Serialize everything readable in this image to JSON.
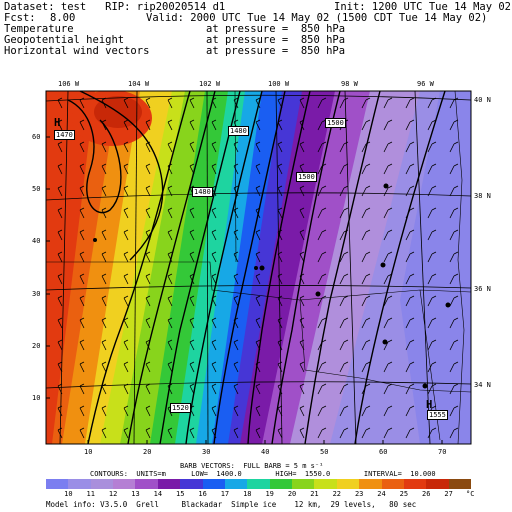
{
  "header": {
    "dataset_line": "Dataset: test   RIP: rip20020514 d1",
    "init_line": "Init: 1200 UTC Tue 14 May 02",
    "fcst_label": "Fcst:",
    "fcst_value": "8.00",
    "valid_line": "Valid: 2000 UTC Tue 14 May 02 (1500 CDT Tue 14 May 02)",
    "fields": [
      {
        "name": "Temperature",
        "pressure_text": "at pressure =  850 hPa"
      },
      {
        "name": "Geopotential height",
        "pressure_text": "at pressure =  850 hPa"
      },
      {
        "name": "Horizontal wind vectors",
        "pressure_text": "at pressure =  850 hPa"
      }
    ]
  },
  "top_axis_labels": [
    "106 W",
    "104 W",
    "102 W",
    "100 W",
    "98 W",
    "96 W"
  ],
  "right_axis_labels": [
    "40 N",
    "38 N",
    "36 N",
    "34 N"
  ],
  "left_axis_ticks": [
    "60",
    "50",
    "40",
    "30",
    "20",
    "10"
  ],
  "bottom_axis_ticks": [
    "10",
    "20",
    "30",
    "40",
    "50",
    "60",
    "70",
    "80"
  ],
  "contour_labels": [
    "1470",
    "1480",
    "1480",
    "1500",
    "1500",
    "1520",
    "1555"
  ],
  "pressure_centers": [
    {
      "letter": "H",
      "value": "1470"
    },
    {
      "letter": "H",
      "value": "1555"
    }
  ],
  "barb_info": "BARB VECTORS:  FULL BARB = 5 m s⁻¹",
  "contour_info": "CONTOURS:  UNITS=m      LOW=  1400.0        HIGH=  1550.0        INTERVAL=  10.000",
  "colorbar": {
    "labels": [
      "10",
      "11",
      "12",
      "13",
      "14",
      "15",
      "16",
      "17",
      "18",
      "19",
      "20",
      "21",
      "22",
      "23",
      "24",
      "25",
      "26",
      "27"
    ],
    "unit": "°C",
    "colors": [
      "#7b7ef0",
      "#9a8ee6",
      "#a98fdc",
      "#b57fd4",
      "#a050c8",
      "#7a1ba8",
      "#4636d6",
      "#1a5ef2",
      "#17a8e6",
      "#1ed4a0",
      "#34c838",
      "#88d41c",
      "#c8e01a",
      "#f0d020",
      "#f09010",
      "#ea6010",
      "#e23a10",
      "#c82808",
      "#8a4a10"
    ]
  },
  "footer": "Model info: V3.5.0  Grell     Blackadar  Simple ice    12 km,  29 levels,   80 sec"
}
